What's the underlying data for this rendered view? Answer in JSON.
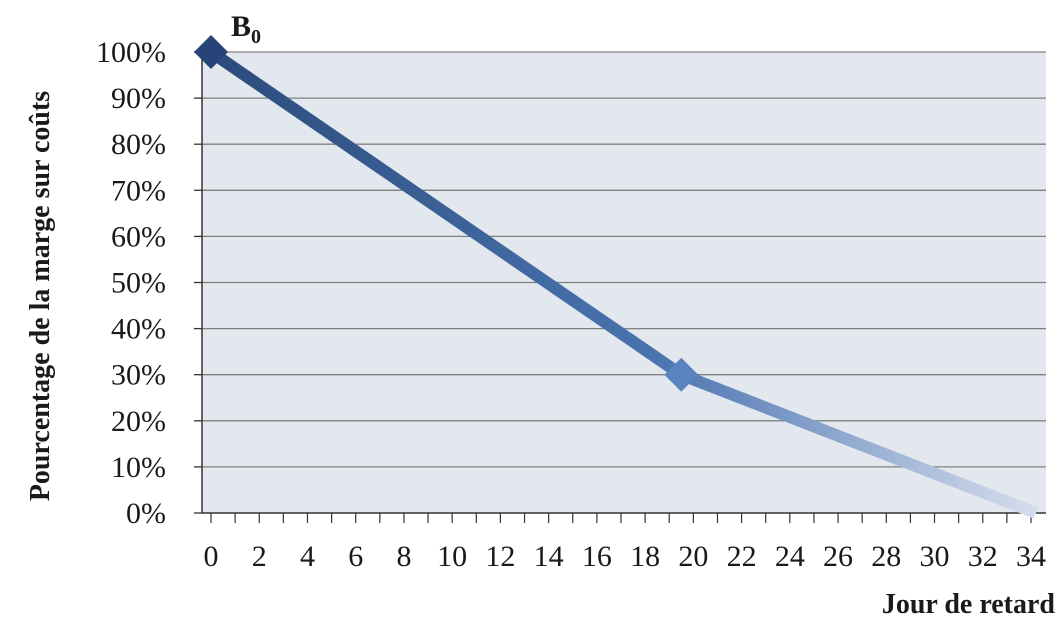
{
  "chart_data": {
    "type": "line",
    "title": "",
    "xlabel": "Jour de retard",
    "ylabel": "Pourcentage  de la marge  sur coûts",
    "x_ticks": [
      0,
      2,
      4,
      6,
      8,
      10,
      12,
      14,
      16,
      18,
      20,
      22,
      24,
      26,
      28,
      30,
      32,
      34
    ],
    "y_ticks": [
      "0%",
      "10%",
      "20%",
      "30%",
      "40%",
      "50%",
      "60%",
      "70%",
      "80%",
      "90%",
      "100%"
    ],
    "xlim": [
      0,
      34
    ],
    "ylim": [
      0,
      100
    ],
    "grid": "horizontal",
    "series": [
      {
        "x": [
          0,
          19.5,
          34.5
        ],
        "y": [
          100,
          30,
          0
        ],
        "markers": [
          0,
          19.5
        ]
      }
    ],
    "annotations": [
      {
        "text": "B",
        "subscript": "0",
        "x": 0,
        "y": 100
      }
    ],
    "colors": {
      "plot_background": "#e3e8ef",
      "grid": "#808080",
      "line_start": "#2a4a7a",
      "line_mid": "#4a74b0",
      "line_end": "#d4dcec",
      "marker_start": "#264477",
      "marker_mid": "#5a84c0"
    }
  }
}
